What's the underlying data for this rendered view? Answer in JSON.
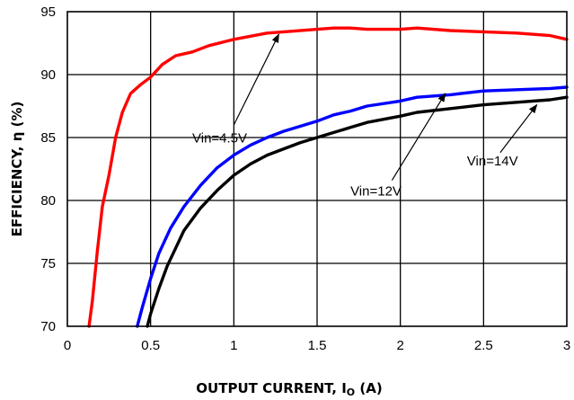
{
  "chart_data": {
    "type": "line",
    "title": "",
    "xlabel": "OUTPUT CURRENT, I",
    "xlabel_sub": "O",
    "xlabel_unit": " (A)",
    "ylabel": "EFFICIENCY, η  (%)",
    "xlim": [
      0,
      3
    ],
    "ylim": [
      70,
      95
    ],
    "xticks": [
      0,
      0.5,
      1,
      1.5,
      2,
      2.5,
      3
    ],
    "xtick_labels": [
      "0",
      "0.5",
      "1",
      "1.5",
      "2",
      "2.5",
      "3"
    ],
    "yticks": [
      70,
      75,
      80,
      85,
      90,
      95
    ],
    "ytick_labels": [
      "70",
      "75",
      "80",
      "85",
      "90",
      "95"
    ],
    "grid": true,
    "legend": "none",
    "series": [
      {
        "color": "#ff0000",
        "x": [
          0.13,
          0.15,
          0.18,
          0.21,
          0.25,
          0.29,
          0.33,
          0.38,
          0.44,
          0.5,
          0.57,
          0.65,
          0.75,
          0.85,
          1.0,
          1.2,
          1.3,
          1.5,
          1.6,
          1.7,
          1.8,
          2.0,
          2.1,
          2.3,
          2.5,
          2.7,
          2.9,
          3.0
        ],
        "y": [
          70,
          72,
          76,
          79.5,
          82,
          85,
          87,
          88.5,
          89.2,
          89.8,
          90.8,
          91.5,
          91.8,
          92.3,
          92.8,
          93.3,
          93.4,
          93.6,
          93.7,
          93.7,
          93.6,
          93.6,
          93.7,
          93.5,
          93.4,
          93.3,
          93.1,
          92.8
        ]
      },
      {
        "color": "#0000ff",
        "x": [
          0.42,
          0.45,
          0.5,
          0.55,
          0.62,
          0.7,
          0.8,
          0.9,
          1.0,
          1.1,
          1.2,
          1.3,
          1.4,
          1.5,
          1.6,
          1.7,
          1.8,
          2.0,
          2.1,
          2.3,
          2.5,
          2.7,
          2.9,
          3.0
        ],
        "y": [
          70,
          71.5,
          73.8,
          75.8,
          77.8,
          79.5,
          81.2,
          82.6,
          83.6,
          84.4,
          85.0,
          85.5,
          85.9,
          86.3,
          86.8,
          87.1,
          87.5,
          87.9,
          88.2,
          88.4,
          88.7,
          88.8,
          88.9,
          89.0
        ]
      },
      {
        "color": "#000000",
        "x": [
          0.48,
          0.5,
          0.55,
          0.6,
          0.65,
          0.7,
          0.8,
          0.9,
          1.0,
          1.1,
          1.2,
          1.3,
          1.4,
          1.5,
          1.6,
          1.7,
          1.8,
          2.0,
          2.1,
          2.3,
          2.5,
          2.7,
          2.9,
          3.0
        ],
        "y": [
          70,
          71,
          73,
          74.8,
          76.2,
          77.6,
          79.4,
          80.8,
          82.0,
          82.9,
          83.6,
          84.1,
          84.6,
          85.0,
          85.4,
          85.8,
          86.2,
          86.7,
          87.0,
          87.3,
          87.6,
          87.8,
          88.0,
          88.2
        ]
      }
    ],
    "annotations": [
      {
        "text": "Vin=4.5V",
        "anchor": [
          0.75,
          84.6
        ],
        "arrow_from": [
          1.0,
          86.0
        ],
        "arrow_to": [
          1.27,
          93.2
        ]
      },
      {
        "text": "Vin=12V",
        "anchor": [
          1.7,
          80.4
        ],
        "arrow_from": [
          1.95,
          81.6
        ],
        "arrow_to": [
          2.27,
          88.5
        ]
      },
      {
        "text": "Vin=14V",
        "anchor": [
          2.4,
          82.8
        ],
        "arrow_from": [
          2.6,
          83.8
        ],
        "arrow_to": [
          2.82,
          87.6
        ]
      }
    ]
  }
}
